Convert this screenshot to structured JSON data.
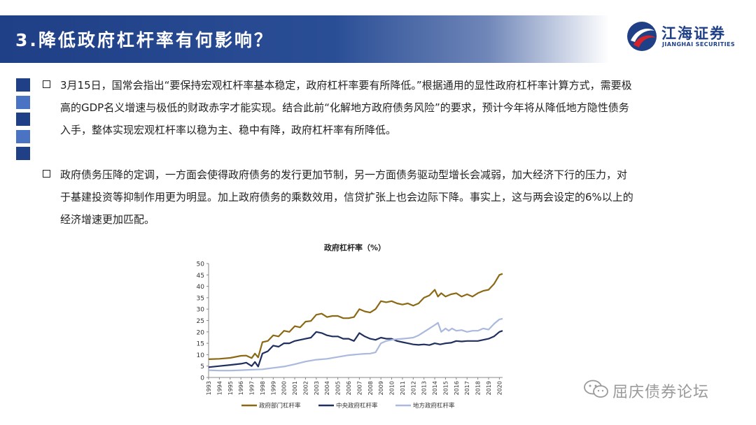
{
  "header": {
    "title": "3.降低政府杠杆率有何影响？",
    "logo_cn": "江海证券",
    "logo_en": "JIANGHAI SECURITIES"
  },
  "body": {
    "paragraphs": [
      "3月15日，国常会指出“要保持宏观杠杆率基本稳定，政府杠杆率要有所降低。”根据通用的显性政府杠杆率计算方式，需要极高的GDP名义增速与极低的财政赤字才能实现。结合此前“化解地方政府债务风险”的要求，预计今年将从降低地方隐性债务入手，整体实现宏观杠杆率以稳为主、稳中有降，政府杠杆率有所降低。",
      "政府债务压降的定调，一方面会使得政府债务的发行更加节制，另一方面债务驱动型增长会减弱，加大经济下行的压力，对于基建投资等抑制作用更为明显。加上政府债务的乘数效用，信贷扩张上也会边际下降。事实上，这与两会设定的6%以上的经济增速更加匹配。"
    ]
  },
  "watermark": "屈庆债券论坛",
  "colors": {
    "title_bar": "#1f3f86",
    "square_dark": "#1f3f86",
    "square_light": "#4a73c4",
    "gov": "#8b6914",
    "central": "#1f2f5e",
    "local": "#aab9dd"
  },
  "chart_data": {
    "type": "line",
    "title": "政府杠杆率（%）",
    "x": [
      1993,
      1994,
      1995,
      1996,
      1997,
      1998,
      1999,
      2000,
      2001,
      2002,
      2003,
      2004,
      2005,
      2006,
      2007,
      2008,
      2009,
      2010,
      2011,
      2012,
      2013,
      2014,
      2015,
      2016,
      2017,
      2018,
      2019,
      2020
    ],
    "x_range": [
      1993,
      2020.3
    ],
    "ylim": [
      0,
      50
    ],
    "yticks": [
      0,
      5,
      10,
      15,
      20,
      25,
      30,
      35,
      40,
      45,
      50
    ],
    "xtick_labels": [
      "1993",
      "1994",
      "1995",
      "1996",
      "1997",
      "1998",
      "1999",
      "2000",
      "2001",
      "2002",
      "2003",
      "2004",
      "2005",
      "2006",
      "2007",
      "2008",
      "2009",
      "2010",
      "2011",
      "2012",
      "2013",
      "2014",
      "2015",
      "2016",
      "2017",
      "2018",
      "2019",
      "2020"
    ],
    "legend_position": "bottom",
    "series": [
      {
        "name": "政府部门杠杆率",
        "color_key": "gov",
        "points": [
          [
            1993,
            8
          ],
          [
            1994,
            8.2
          ],
          [
            1995,
            8.6
          ],
          [
            1996,
            9.5
          ],
          [
            1996.5,
            9.6
          ],
          [
            1997,
            8.5
          ],
          [
            1997.3,
            10.5
          ],
          [
            1997.6,
            8.8
          ],
          [
            1998,
            15.5
          ],
          [
            1998.5,
            16
          ],
          [
            1999,
            18.5
          ],
          [
            1999.5,
            18
          ],
          [
            2000,
            20.5
          ],
          [
            2000.5,
            20
          ],
          [
            2001,
            22.5
          ],
          [
            2001.5,
            22
          ],
          [
            2002,
            24.5
          ],
          [
            2002.5,
            24.8
          ],
          [
            2003,
            27.5
          ],
          [
            2003.5,
            28
          ],
          [
            2004,
            26.5
          ],
          [
            2004.5,
            27
          ],
          [
            2005,
            27
          ],
          [
            2005.5,
            26
          ],
          [
            2006,
            26
          ],
          [
            2006.5,
            26.5
          ],
          [
            2007,
            30
          ],
          [
            2007.5,
            29
          ],
          [
            2008,
            28.5
          ],
          [
            2008.5,
            30
          ],
          [
            2009,
            33.5
          ],
          [
            2009.5,
            33
          ],
          [
            2010,
            33.5
          ],
          [
            2010.5,
            32.5
          ],
          [
            2011,
            32
          ],
          [
            2011.5,
            32.5
          ],
          [
            2012,
            31.5
          ],
          [
            2012.5,
            32.5
          ],
          [
            2013,
            35
          ],
          [
            2013.5,
            36
          ],
          [
            2014,
            38.5
          ],
          [
            2014.3,
            35.5
          ],
          [
            2014.6,
            37
          ],
          [
            2015,
            35.5
          ],
          [
            2015.5,
            36.5
          ],
          [
            2016,
            37
          ],
          [
            2016.5,
            35.5
          ],
          [
            2017,
            36.5
          ],
          [
            2017.5,
            35.5
          ],
          [
            2018,
            37
          ],
          [
            2018.5,
            38
          ],
          [
            2019,
            38.5
          ],
          [
            2019.5,
            41
          ],
          [
            2020,
            45
          ],
          [
            2020.3,
            45.5
          ]
        ]
      },
      {
        "name": "中央政府杠杆率",
        "color_key": "central",
        "points": [
          [
            1993,
            4.5
          ],
          [
            1994,
            5
          ],
          [
            1995,
            5.5
          ],
          [
            1996,
            6
          ],
          [
            1996.5,
            6.5
          ],
          [
            1997,
            5
          ],
          [
            1997.3,
            6.8
          ],
          [
            1997.6,
            4.8
          ],
          [
            1998,
            10.5
          ],
          [
            1998.5,
            11.5
          ],
          [
            1999,
            14
          ],
          [
            1999.5,
            13.5
          ],
          [
            2000,
            15
          ],
          [
            2000.5,
            15
          ],
          [
            2001,
            16
          ],
          [
            2001.5,
            16.5
          ],
          [
            2002,
            17
          ],
          [
            2002.5,
            17.5
          ],
          [
            2003,
            20
          ],
          [
            2003.5,
            19.5
          ],
          [
            2004,
            18.5
          ],
          [
            2004.5,
            18
          ],
          [
            2005,
            18
          ],
          [
            2005.5,
            17
          ],
          [
            2006,
            17
          ],
          [
            2006.5,
            16
          ],
          [
            2007,
            19.5
          ],
          [
            2007.5,
            18
          ],
          [
            2008,
            17
          ],
          [
            2008.5,
            16.5
          ],
          [
            2009,
            17.5
          ],
          [
            2009.5,
            17
          ],
          [
            2010,
            17
          ],
          [
            2010.5,
            16
          ],
          [
            2011,
            15.5
          ],
          [
            2011.5,
            15
          ],
          [
            2012,
            14.5
          ],
          [
            2012.5,
            14.3
          ],
          [
            2013,
            14.5
          ],
          [
            2013.5,
            14.2
          ],
          [
            2014,
            15
          ],
          [
            2014.5,
            14.5
          ],
          [
            2015,
            15
          ],
          [
            2015.5,
            15.2
          ],
          [
            2016,
            16
          ],
          [
            2016.5,
            15.8
          ],
          [
            2017,
            16
          ],
          [
            2017.5,
            16
          ],
          [
            2018,
            16
          ],
          [
            2018.5,
            16.5
          ],
          [
            2019,
            17
          ],
          [
            2019.5,
            18
          ],
          [
            2020,
            20
          ],
          [
            2020.3,
            20.5
          ]
        ]
      },
      {
        "name": "地方政府杠杆率",
        "color_key": "local",
        "points": [
          [
            1993,
            3.2
          ],
          [
            1994,
            3
          ],
          [
            1995,
            3
          ],
          [
            1996,
            3.2
          ],
          [
            1997,
            3.4
          ],
          [
            1998,
            3.6
          ],
          [
            1999,
            4.2
          ],
          [
            2000,
            4.8
          ],
          [
            2001,
            5.8
          ],
          [
            2002,
            7
          ],
          [
            2003,
            7.8
          ],
          [
            2004,
            8.2
          ],
          [
            2005,
            9
          ],
          [
            2006,
            9.8
          ],
          [
            2007,
            10.2
          ],
          [
            2007.5,
            10.4
          ],
          [
            2008,
            10.5
          ],
          [
            2008.5,
            11
          ],
          [
            2009,
            15
          ],
          [
            2009.5,
            16
          ],
          [
            2010,
            16.5
          ],
          [
            2010.5,
            16.8
          ],
          [
            2011,
            17
          ],
          [
            2011.5,
            17.2
          ],
          [
            2012,
            17.5
          ],
          [
            2012.5,
            18.5
          ],
          [
            2013,
            20
          ],
          [
            2013.5,
            21.5
          ],
          [
            2014,
            23
          ],
          [
            2014.3,
            24
          ],
          [
            2014.6,
            20
          ],
          [
            2015,
            21.5
          ],
          [
            2015.3,
            20.5
          ],
          [
            2015.6,
            21.5
          ],
          [
            2016,
            20.5
          ],
          [
            2016.5,
            20.8
          ],
          [
            2017,
            20
          ],
          [
            2017.5,
            20.5
          ],
          [
            2018,
            20.5
          ],
          [
            2018.5,
            21.5
          ],
          [
            2019,
            21
          ],
          [
            2019.5,
            23.5
          ],
          [
            2020,
            25.5
          ],
          [
            2020.3,
            25.8
          ]
        ]
      }
    ]
  }
}
